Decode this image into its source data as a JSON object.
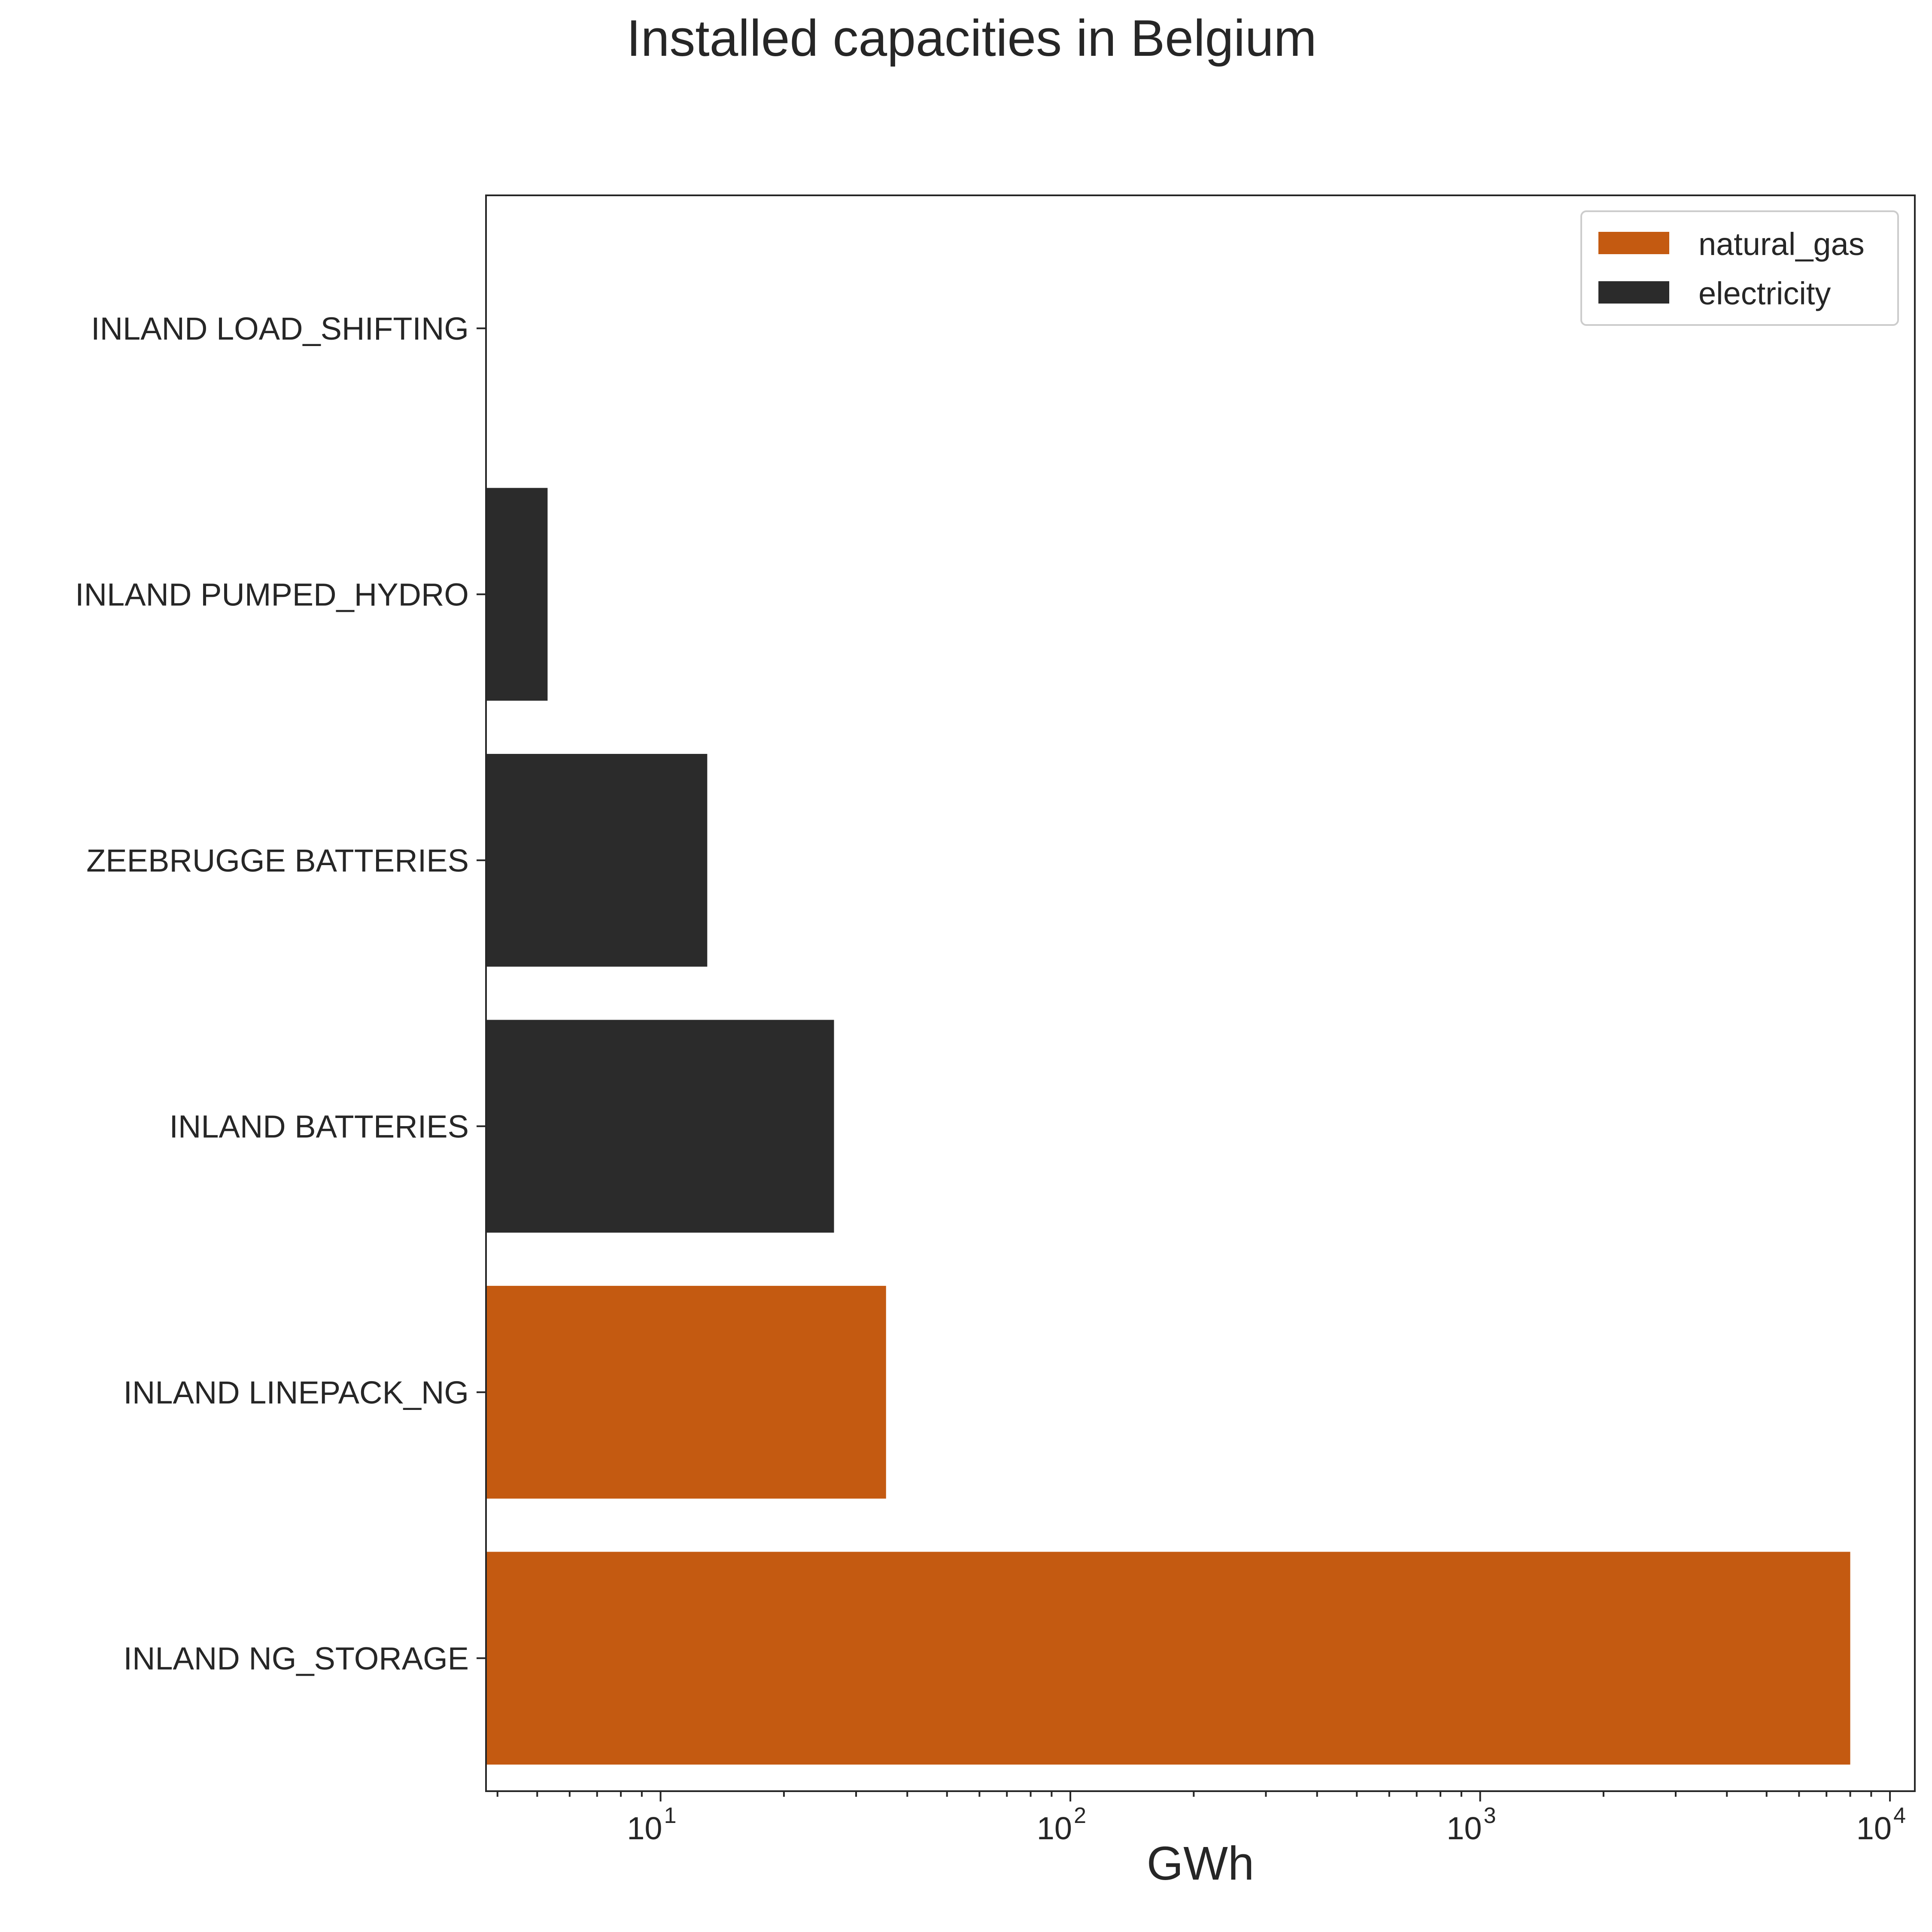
{
  "chart_data": {
    "type": "bar",
    "orientation": "horizontal",
    "title": "Installed capacities in Belgium",
    "xlabel": "GWh",
    "ylabel": "",
    "xscale": "log",
    "xlim": [
      3.75,
      11500
    ],
    "categories": [
      "INLAND LOAD_SHIFTING",
      "INLAND PUMPED_HYDRO",
      "ZEEBRUGGE BATTERIES",
      "INLAND BATTERIES",
      "INLAND LINEPACK_NG",
      "INLAND NG_STORAGE"
    ],
    "bars": [
      {
        "category": "INLAND LOAD_SHIFTING",
        "value": 0,
        "series": "electricity"
      },
      {
        "category": "INLAND PUMPED_HYDRO",
        "value": 5.3,
        "series": "electricity"
      },
      {
        "category": "ZEEBRUGGE BATTERIES",
        "value": 13,
        "series": "electricity"
      },
      {
        "category": "INLAND BATTERIES",
        "value": 26.5,
        "series": "electricity"
      },
      {
        "category": "INLAND LINEPACK_NG",
        "value": 35.5,
        "series": "natural_gas"
      },
      {
        "category": "INLAND NG_STORAGE",
        "value": 8000,
        "series": "natural_gas"
      }
    ],
    "series": [
      {
        "name": "natural_gas",
        "color": "#c45a11"
      },
      {
        "name": "electricity",
        "color": "#2b2b2b"
      }
    ],
    "xticks": [
      {
        "base": "10",
        "exp": "1",
        "value": 10
      },
      {
        "base": "10",
        "exp": "2",
        "value": 100
      },
      {
        "base": "10",
        "exp": "3",
        "value": 1000
      },
      {
        "base": "10",
        "exp": "4",
        "value": 10000
      }
    ],
    "legend_position": "upper-right",
    "grid": false
  }
}
